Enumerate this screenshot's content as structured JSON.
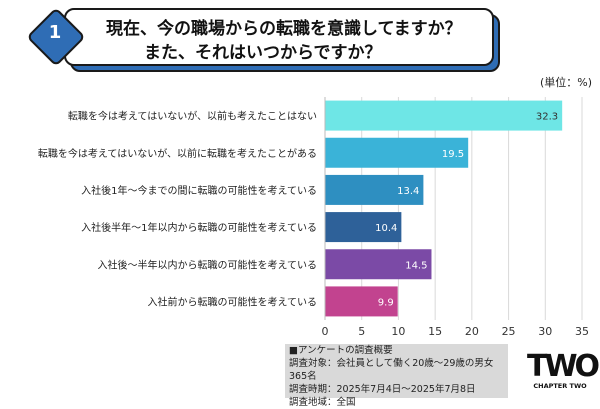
{
  "header": {
    "number": "1",
    "title_line1": "現在、今の職場からの転職を意識してますか？",
    "title_line2": "また、それはいつからですか？"
  },
  "unit_label": "(単位：%)",
  "chart_data": {
    "type": "bar",
    "orientation": "horizontal",
    "categories": [
      "転職を今は考えてはいないが、以前も考えたことはない",
      "転職を今は考えてはいないが、以前に転職を考えたことがある",
      "入社後1年〜今までの間に転職の可能性を考えている",
      "入社後半年〜1年以内から転職の可能性を考えている",
      "入社後〜半年以内から転職の可能性を考えている",
      "入社前から転職の可能性を考えている"
    ],
    "values": [
      32.3,
      19.5,
      13.4,
      10.4,
      14.5,
      9.9
    ],
    "value_labels": [
      "32.3",
      "19.5",
      "13.4",
      "10.4",
      "14.5",
      "9.9"
    ],
    "colors": [
      "#6ee6e6",
      "#3ab3d8",
      "#2e8fc1",
      "#2e6199",
      "#7b4aa6",
      "#c2438f"
    ],
    "xlim": [
      0,
      35
    ],
    "xticks": [
      "0",
      "5",
      "10",
      "15",
      "20",
      "25",
      "30",
      "35"
    ],
    "grid": true
  },
  "survey": {
    "heading": "■アンケートの調査概要",
    "target": "調査対象：会社員として働く20歳〜29歳の男女365名",
    "period": "調査時期：2025年7月4日〜2025年7月8日",
    "region": "調査地域：全国"
  },
  "logo": {
    "mark": "TWO",
    "text": "CHAPTER TWO"
  }
}
